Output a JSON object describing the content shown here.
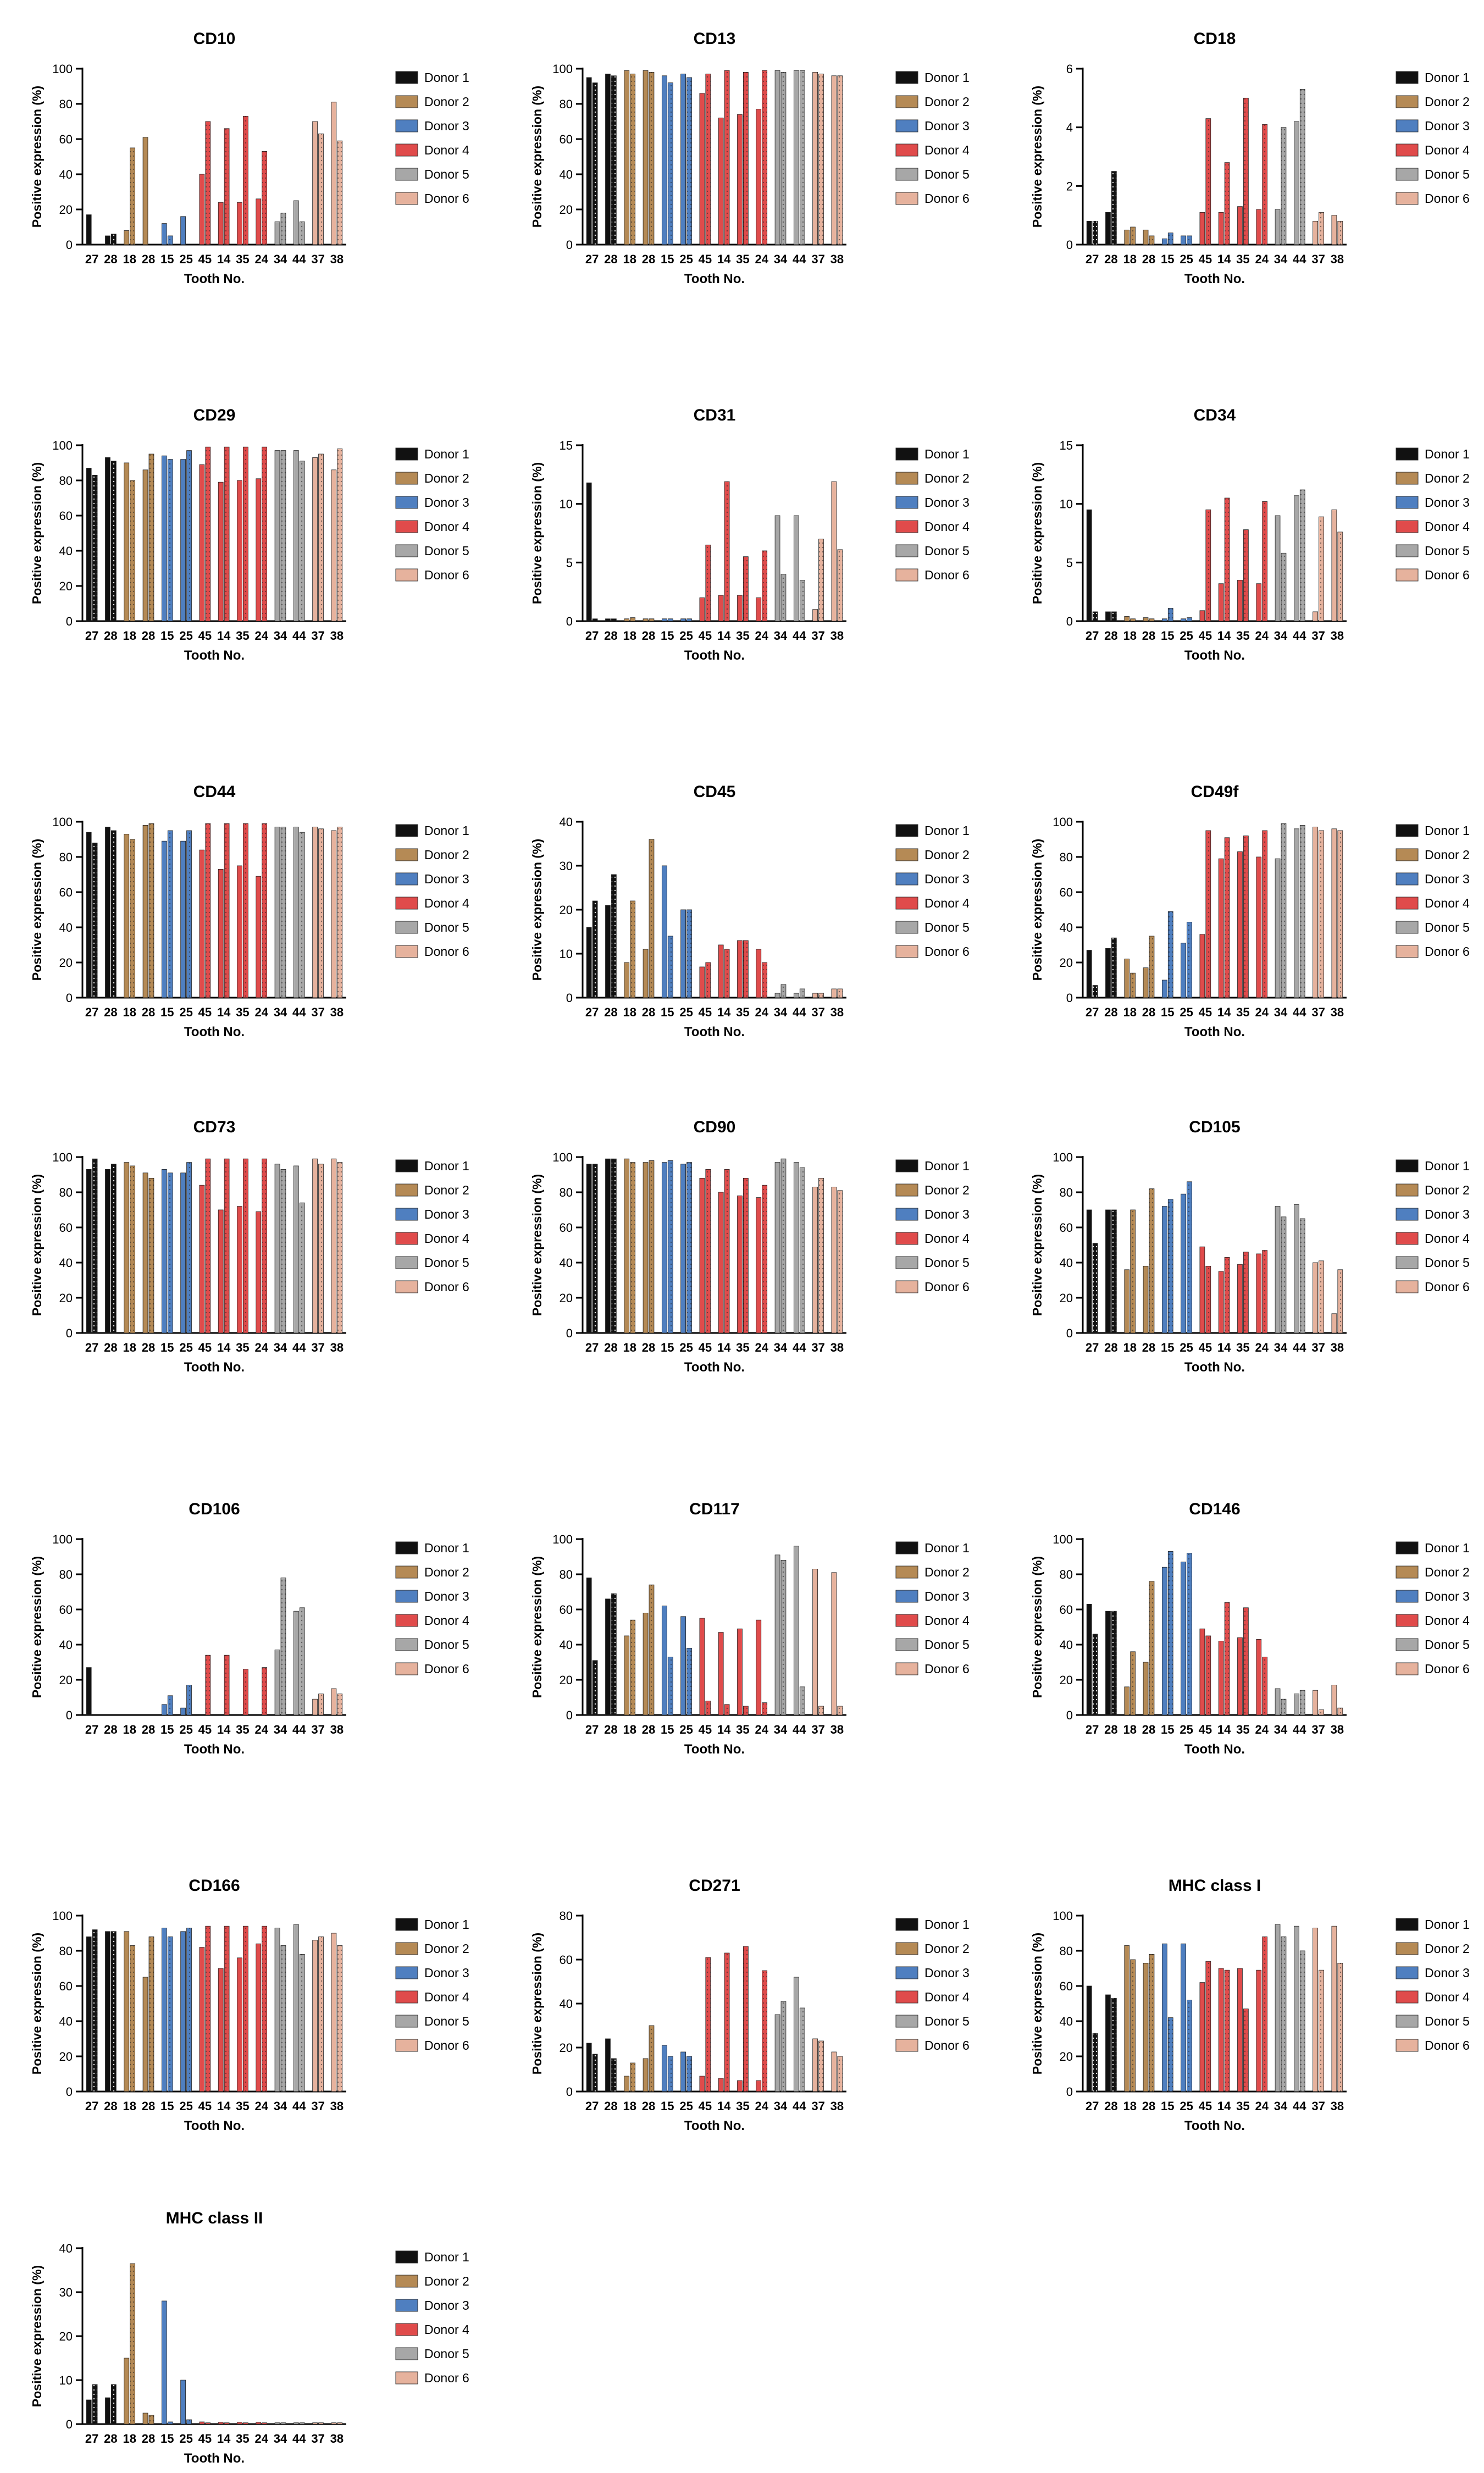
{
  "common": {
    "xlabel": "Tooth No.",
    "ylabel": "Positive expression (%)",
    "tooth_labels": [
      "27",
      "28",
      "18",
      "28",
      "15",
      "25",
      "45",
      "14",
      "35",
      "24",
      "34",
      "44",
      "37",
      "38"
    ],
    "legend": [
      "Donor 1",
      "Donor 2",
      "Donor 3",
      "Donor 4",
      "Donor 5",
      "Donor 6"
    ],
    "donor_colors": [
      "#111111",
      "#b58a55",
      "#4f7fc0",
      "#e04b4b",
      "#a7a7a7",
      "#e6b29d"
    ]
  },
  "chart_data": [
    {
      "type": "bar",
      "title": "CD10",
      "ylim": [
        0,
        100
      ],
      "yticks": [
        0,
        20,
        40,
        60,
        80,
        100
      ],
      "values": [
        [
          17,
          0
        ],
        [
          5,
          6
        ],
        [
          8,
          55
        ],
        [
          61,
          0
        ],
        [
          12,
          5
        ],
        [
          16,
          0
        ],
        [
          40,
          70
        ],
        [
          24,
          66
        ],
        [
          24,
          73
        ],
        [
          26,
          53
        ],
        [
          13,
          18
        ],
        [
          25,
          13
        ],
        [
          70,
          63
        ],
        [
          81,
          59
        ]
      ]
    },
    {
      "type": "bar",
      "title": "CD13",
      "ylim": [
        0,
        100
      ],
      "yticks": [
        0,
        20,
        40,
        60,
        80,
        100
      ],
      "values": [
        [
          95,
          92
        ],
        [
          97,
          96
        ],
        [
          99,
          97
        ],
        [
          99,
          98
        ],
        [
          96,
          92
        ],
        [
          97,
          95
        ],
        [
          86,
          97
        ],
        [
          72,
          99
        ],
        [
          74,
          98
        ],
        [
          77,
          99
        ],
        [
          99,
          98
        ],
        [
          99,
          99
        ],
        [
          98,
          97
        ],
        [
          96,
          96
        ]
      ]
    },
    {
      "type": "bar",
      "title": "CD18",
      "ylim": [
        0,
        6
      ],
      "yticks": [
        0,
        2,
        4,
        6
      ],
      "values": [
        [
          0.8,
          0.8
        ],
        [
          1.1,
          2.5
        ],
        [
          0.5,
          0.6
        ],
        [
          0.5,
          0.3
        ],
        [
          0.2,
          0.4
        ],
        [
          0.3,
          0.3
        ],
        [
          1.1,
          4.3
        ],
        [
          1.1,
          2.8
        ],
        [
          1.3,
          5.0
        ],
        [
          1.2,
          4.1
        ],
        [
          1.2,
          4.0
        ],
        [
          4.2,
          5.3
        ],
        [
          0.8,
          1.1
        ],
        [
          1.0,
          0.8
        ]
      ]
    },
    {
      "type": "bar",
      "title": "CD29",
      "ylim": [
        0,
        100
      ],
      "yticks": [
        0,
        20,
        40,
        60,
        80,
        100
      ],
      "values": [
        [
          87,
          83
        ],
        [
          93,
          91
        ],
        [
          90,
          80
        ],
        [
          86,
          95
        ],
        [
          94,
          92
        ],
        [
          92,
          97
        ],
        [
          89,
          99
        ],
        [
          79,
          99
        ],
        [
          80,
          99
        ],
        [
          81,
          99
        ],
        [
          97,
          97
        ],
        [
          97,
          91
        ],
        [
          93,
          95
        ],
        [
          86,
          98
        ]
      ]
    },
    {
      "type": "bar",
      "title": "CD31",
      "ylim": [
        0,
        15
      ],
      "yticks": [
        0,
        5,
        10,
        15
      ],
      "values": [
        [
          11.8,
          0.2
        ],
        [
          0.2,
          0.2
        ],
        [
          0.2,
          0.3
        ],
        [
          0.2,
          0.2
        ],
        [
          0.2,
          0.2
        ],
        [
          0.2,
          0.2
        ],
        [
          2.0,
          6.5
        ],
        [
          2.2,
          11.9
        ],
        [
          2.2,
          5.5
        ],
        [
          2.0,
          6.0
        ],
        [
          9.0,
          4.0
        ],
        [
          9.0,
          3.5
        ],
        [
          1.0,
          7.0
        ],
        [
          11.9,
          6.1
        ]
      ]
    },
    {
      "type": "bar",
      "title": "CD34",
      "ylim": [
        0,
        15
      ],
      "yticks": [
        0,
        5,
        10,
        15
      ],
      "values": [
        [
          9.5,
          0.8
        ],
        [
          0.8,
          0.8
        ],
        [
          0.4,
          0.2
        ],
        [
          0.3,
          0.2
        ],
        [
          0.2,
          1.1
        ],
        [
          0.2,
          0.3
        ],
        [
          0.9,
          9.5
        ],
        [
          3.2,
          10.5
        ],
        [
          3.5,
          7.8
        ],
        [
          3.2,
          10.2
        ],
        [
          9.0,
          5.8
        ],
        [
          10.7,
          11.2
        ],
        [
          0.8,
          8.9
        ],
        [
          9.5,
          7.6
        ]
      ]
    },
    {
      "type": "bar",
      "title": "CD44",
      "ylim": [
        0,
        100
      ],
      "yticks": [
        0,
        20,
        40,
        60,
        80,
        100
      ],
      "values": [
        [
          94,
          88
        ],
        [
          97,
          95
        ],
        [
          93,
          90
        ],
        [
          98,
          99
        ],
        [
          89,
          95
        ],
        [
          89,
          95
        ],
        [
          84,
          99
        ],
        [
          73,
          99
        ],
        [
          75,
          99
        ],
        [
          69,
          99
        ],
        [
          97,
          97
        ],
        [
          97,
          94
        ],
        [
          97,
          96
        ],
        [
          95,
          97
        ]
      ]
    },
    {
      "type": "bar",
      "title": "CD45",
      "ylim": [
        0,
        40
      ],
      "yticks": [
        0,
        10,
        20,
        30,
        40
      ],
      "values": [
        [
          16,
          22
        ],
        [
          21,
          28
        ],
        [
          8,
          22
        ],
        [
          11,
          36
        ],
        [
          30,
          14
        ],
        [
          20,
          20
        ],
        [
          7,
          8
        ],
        [
          12,
          11
        ],
        [
          13,
          13
        ],
        [
          11,
          8
        ],
        [
          1,
          3
        ],
        [
          1,
          2
        ],
        [
          1,
          1
        ],
        [
          2,
          2
        ]
      ]
    },
    {
      "type": "bar",
      "title": "CD49f",
      "ylim": [
        0,
        100
      ],
      "yticks": [
        0,
        20,
        40,
        60,
        80,
        100
      ],
      "values": [
        [
          27,
          7
        ],
        [
          28,
          34
        ],
        [
          22,
          14
        ],
        [
          17,
          35
        ],
        [
          10,
          49
        ],
        [
          31,
          43
        ],
        [
          36,
          95
        ],
        [
          79,
          91
        ],
        [
          83,
          92
        ],
        [
          80,
          95
        ],
        [
          79,
          99
        ],
        [
          96,
          98
        ],
        [
          97,
          95
        ],
        [
          96,
          95
        ]
      ]
    },
    {
      "type": "bar",
      "title": "CD73",
      "ylim": [
        0,
        100
      ],
      "yticks": [
        0,
        20,
        40,
        60,
        80,
        100
      ],
      "values": [
        [
          93,
          99
        ],
        [
          93,
          96
        ],
        [
          97,
          95
        ],
        [
          91,
          88
        ],
        [
          93,
          91
        ],
        [
          91,
          97
        ],
        [
          84,
          99
        ],
        [
          70,
          99
        ],
        [
          72,
          99
        ],
        [
          69,
          99
        ],
        [
          96,
          93
        ],
        [
          95,
          74
        ],
        [
          99,
          96
        ],
        [
          99,
          97
        ]
      ]
    },
    {
      "type": "bar",
      "title": "CD90",
      "ylim": [
        0,
        100
      ],
      "yticks": [
        0,
        20,
        40,
        60,
        80,
        100
      ],
      "values": [
        [
          96,
          96
        ],
        [
          99,
          99
        ],
        [
          99,
          97
        ],
        [
          97,
          98
        ],
        [
          97,
          98
        ],
        [
          96,
          97
        ],
        [
          88,
          93
        ],
        [
          80,
          93
        ],
        [
          78,
          88
        ],
        [
          77,
          84
        ],
        [
          97,
          99
        ],
        [
          97,
          94
        ],
        [
          83,
          88
        ],
        [
          83,
          81
        ]
      ]
    },
    {
      "type": "bar",
      "title": "CD105",
      "ylim": [
        0,
        100
      ],
      "yticks": [
        0,
        20,
        40,
        60,
        80,
        100
      ],
      "values": [
        [
          70,
          51
        ],
        [
          70,
          70
        ],
        [
          36,
          70
        ],
        [
          38,
          82
        ],
        [
          72,
          76
        ],
        [
          79,
          86
        ],
        [
          49,
          38
        ],
        [
          35,
          43
        ],
        [
          39,
          46
        ],
        [
          45,
          47
        ],
        [
          72,
          66
        ],
        [
          73,
          65
        ],
        [
          40,
          41
        ],
        [
          11,
          36
        ]
      ]
    },
    {
      "type": "bar",
      "title": "CD106",
      "ylim": [
        0,
        100
      ],
      "yticks": [
        0,
        20,
        40,
        60,
        80,
        100
      ],
      "values": [
        [
          27,
          0
        ],
        [
          0,
          0
        ],
        [
          0,
          0
        ],
        [
          0,
          0
        ],
        [
          6,
          11
        ],
        [
          4,
          17
        ],
        [
          0,
          34
        ],
        [
          0,
          34
        ],
        [
          0,
          26
        ],
        [
          0,
          27
        ],
        [
          37,
          78
        ],
        [
          59,
          61
        ],
        [
          9,
          12
        ],
        [
          15,
          12
        ]
      ]
    },
    {
      "type": "bar",
      "title": "CD117",
      "ylim": [
        0,
        100
      ],
      "yticks": [
        0,
        20,
        40,
        60,
        80,
        100
      ],
      "values": [
        [
          78,
          31
        ],
        [
          66,
          69
        ],
        [
          45,
          54
        ],
        [
          58,
          74
        ],
        [
          62,
          33
        ],
        [
          56,
          38
        ],
        [
          55,
          8
        ],
        [
          47,
          6
        ],
        [
          49,
          5
        ],
        [
          54,
          7
        ],
        [
          91,
          88
        ],
        [
          96,
          16
        ],
        [
          83,
          5
        ],
        [
          81,
          5
        ]
      ]
    },
    {
      "type": "bar",
      "title": "CD146",
      "ylim": [
        0,
        100
      ],
      "yticks": [
        0,
        20,
        40,
        60,
        80,
        100
      ],
      "values": [
        [
          63,
          46
        ],
        [
          59,
          59
        ],
        [
          16,
          36
        ],
        [
          30,
          76
        ],
        [
          84,
          93
        ],
        [
          87,
          92
        ],
        [
          49,
          45
        ],
        [
          42,
          64
        ],
        [
          44,
          61
        ],
        [
          43,
          33
        ],
        [
          15,
          9
        ],
        [
          12,
          14
        ],
        [
          14,
          3
        ],
        [
          17,
          4
        ]
      ]
    },
    {
      "type": "bar",
      "title": "CD166",
      "ylim": [
        0,
        100
      ],
      "yticks": [
        0,
        20,
        40,
        60,
        80,
        100
      ],
      "values": [
        [
          88,
          92
        ],
        [
          91,
          91
        ],
        [
          91,
          83
        ],
        [
          65,
          88
        ],
        [
          93,
          88
        ],
        [
          91,
          93
        ],
        [
          82,
          94
        ],
        [
          70,
          94
        ],
        [
          76,
          94
        ],
        [
          84,
          94
        ],
        [
          93,
          83
        ],
        [
          95,
          78
        ],
        [
          86,
          88
        ],
        [
          90,
          83
        ]
      ]
    },
    {
      "type": "bar",
      "title": "CD271",
      "ylim": [
        0,
        80
      ],
      "yticks": [
        0,
        20,
        40,
        60,
        80
      ],
      "values": [
        [
          22,
          17
        ],
        [
          24,
          15
        ],
        [
          7,
          13
        ],
        [
          15,
          30
        ],
        [
          21,
          16
        ],
        [
          18,
          16
        ],
        [
          7,
          61
        ],
        [
          6,
          63
        ],
        [
          5,
          66
        ],
        [
          5,
          55
        ],
        [
          35,
          41
        ],
        [
          52,
          38
        ],
        [
          24,
          23
        ],
        [
          18,
          16
        ]
      ]
    },
    {
      "type": "bar",
      "title": "MHC class I",
      "ylim": [
        0,
        100
      ],
      "yticks": [
        0,
        20,
        40,
        60,
        80,
        100
      ],
      "values": [
        [
          60,
          33
        ],
        [
          55,
          53
        ],
        [
          83,
          75
        ],
        [
          73,
          78
        ],
        [
          84,
          42
        ],
        [
          84,
          52
        ],
        [
          62,
          74
        ],
        [
          70,
          69
        ],
        [
          70,
          47
        ],
        [
          69,
          88
        ],
        [
          95,
          88
        ],
        [
          94,
          80
        ],
        [
          93,
          69
        ],
        [
          94,
          73
        ]
      ]
    },
    {
      "type": "bar",
      "title": "MHC class II",
      "ylim": [
        0,
        40
      ],
      "yticks": [
        0,
        10,
        20,
        30,
        40
      ],
      "values": [
        [
          5.5,
          9
        ],
        [
          6,
          9
        ],
        [
          15,
          36.5
        ],
        [
          2.5,
          2
        ],
        [
          28,
          0.5
        ],
        [
          10,
          1
        ],
        [
          0.5,
          0.3
        ],
        [
          0.4,
          0.3
        ],
        [
          0.4,
          0.3
        ],
        [
          0.4,
          0.3
        ],
        [
          0.3,
          0.3
        ],
        [
          0.3,
          0.3
        ],
        [
          0.3,
          0.3
        ],
        [
          0.3,
          0.3
        ]
      ]
    }
  ]
}
